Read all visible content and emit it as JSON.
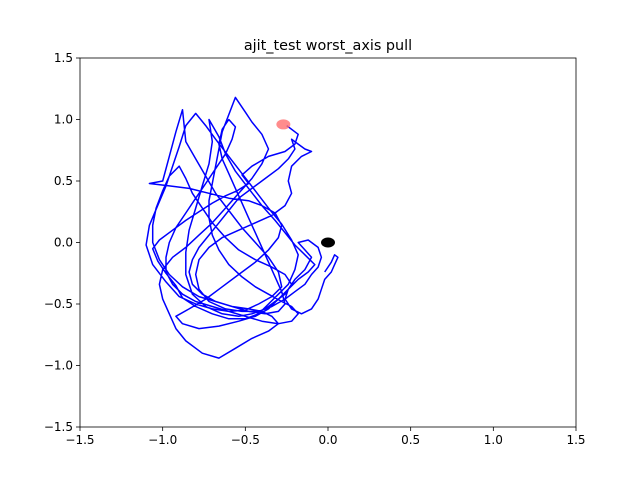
{
  "chart_data": {
    "type": "line",
    "title": "ajit_test worst_axis pull",
    "xlabel": "",
    "ylabel": "",
    "xlim": [
      -1.5,
      1.5
    ],
    "ylim": [
      -1.5,
      1.5
    ],
    "xticks": [
      -1.5,
      -1.0,
      -0.5,
      0.0,
      0.5,
      1.0,
      1.5
    ],
    "yticks": [
      -1.5,
      -1.0,
      -0.5,
      0.0,
      0.5,
      1.0,
      1.5
    ],
    "xtick_labels": [
      "−1.5",
      "−1.0",
      "−0.5",
      "0.0",
      "0.5",
      "1.0",
      "1.5"
    ],
    "ytick_labels": [
      "−1.5",
      "−1.0",
      "−0.5",
      "0.0",
      "0.5",
      "1.0",
      "1.5"
    ],
    "grid": false,
    "series": [
      {
        "color": "#0000ff",
        "points": [
          [
            -0.25,
            0.95
          ],
          [
            -0.18,
            0.88
          ],
          [
            -0.2,
            0.8
          ],
          [
            -0.26,
            0.74
          ],
          [
            -0.36,
            0.7
          ],
          [
            -0.46,
            0.62
          ],
          [
            -0.52,
            0.55
          ],
          [
            -0.48,
            0.48
          ],
          [
            -0.55,
            0.42
          ],
          [
            -0.62,
            0.38
          ],
          [
            -0.7,
            0.32
          ],
          [
            -0.78,
            0.25
          ],
          [
            -0.86,
            0.18
          ],
          [
            -0.94,
            0.1
          ],
          [
            -1.02,
            0.02
          ],
          [
            -1.06,
            -0.05
          ],
          [
            -1.03,
            -0.15
          ],
          [
            -0.98,
            -0.25
          ],
          [
            -0.92,
            -0.35
          ],
          [
            -0.88,
            -0.45
          ],
          [
            -0.8,
            -0.52
          ],
          [
            -0.7,
            -0.58
          ],
          [
            -0.6,
            -0.62
          ],
          [
            -0.5,
            -0.62
          ],
          [
            -0.42,
            -0.58
          ],
          [
            -0.36,
            -0.5
          ],
          [
            -0.3,
            -0.42
          ],
          [
            -0.24,
            -0.34
          ],
          [
            -0.2,
            -0.22
          ],
          [
            -0.18,
            -0.1
          ],
          [
            -0.22,
            0.02
          ],
          [
            -0.28,
            0.15
          ],
          [
            -0.36,
            0.28
          ],
          [
            -0.44,
            0.42
          ],
          [
            -0.52,
            0.56
          ],
          [
            -0.6,
            0.7
          ],
          [
            -0.68,
            0.84
          ],
          [
            -0.74,
            0.95
          ],
          [
            -0.8,
            1.05
          ],
          [
            -0.86,
            0.95
          ],
          [
            -0.9,
            0.78
          ],
          [
            -0.94,
            0.62
          ],
          [
            -0.98,
            0.46
          ],
          [
            -1.03,
            0.3
          ],
          [
            -1.08,
            0.14
          ],
          [
            -1.1,
            -0.02
          ],
          [
            -1.06,
            -0.18
          ],
          [
            -0.98,
            -0.32
          ],
          [
            -0.9,
            -0.44
          ],
          [
            -0.8,
            -0.5
          ],
          [
            -0.7,
            -0.54
          ],
          [
            -0.6,
            -0.56
          ],
          [
            -0.5,
            -0.55
          ],
          [
            -0.42,
            -0.5
          ],
          [
            -0.34,
            -0.44
          ],
          [
            -0.28,
            -0.36
          ],
          [
            -0.3,
            -0.24
          ],
          [
            -0.36,
            -0.12
          ],
          [
            -0.44,
            0.0
          ],
          [
            -0.52,
            0.12
          ],
          [
            -0.6,
            0.26
          ],
          [
            -0.68,
            0.4
          ],
          [
            -0.74,
            0.54
          ],
          [
            -0.8,
            0.68
          ],
          [
            -0.86,
            0.82
          ],
          [
            -0.88,
            1.08
          ],
          [
            -0.92,
            0.9
          ],
          [
            -0.96,
            0.7
          ],
          [
            -1.0,
            0.5
          ],
          [
            -1.08,
            0.48
          ],
          [
            -0.96,
            0.46
          ],
          [
            -0.84,
            0.44
          ],
          [
            -0.72,
            0.4
          ],
          [
            -0.6,
            0.36
          ],
          [
            -0.48,
            0.34
          ],
          [
            -0.4,
            0.3
          ],
          [
            -0.32,
            0.24
          ],
          [
            -0.28,
            0.14
          ],
          [
            -0.3,
            0.04
          ],
          [
            -0.36,
            -0.06
          ],
          [
            -0.44,
            -0.16
          ],
          [
            -0.54,
            -0.26
          ],
          [
            -0.64,
            -0.36
          ],
          [
            -0.74,
            -0.46
          ],
          [
            -0.84,
            -0.54
          ],
          [
            -0.92,
            -0.6
          ],
          [
            -0.88,
            -0.66
          ],
          [
            -0.78,
            -0.7
          ],
          [
            -0.66,
            -0.68
          ],
          [
            -0.54,
            -0.64
          ],
          [
            -0.44,
            -0.6
          ],
          [
            -0.36,
            -0.54
          ],
          [
            -0.3,
            -0.46
          ],
          [
            -0.24,
            -0.38
          ],
          [
            -0.18,
            -0.3
          ],
          [
            -0.12,
            -0.24
          ],
          [
            -0.08,
            -0.18
          ],
          [
            -0.14,
            -0.1
          ],
          [
            -0.2,
            -0.02
          ],
          [
            -0.26,
            0.08
          ],
          [
            -0.32,
            0.18
          ],
          [
            -0.4,
            0.3
          ],
          [
            -0.48,
            0.44
          ],
          [
            -0.56,
            0.58
          ],
          [
            -0.62,
            0.72
          ],
          [
            -0.66,
            0.86
          ],
          [
            -0.72,
            1.0
          ],
          [
            -0.7,
            0.82
          ],
          [
            -0.72,
            0.64
          ],
          [
            -0.76,
            0.46
          ],
          [
            -0.8,
            0.28
          ],
          [
            -0.84,
            0.1
          ],
          [
            -0.86,
            -0.08
          ],
          [
            -0.86,
            -0.26
          ],
          [
            -0.82,
            -0.42
          ],
          [
            -0.74,
            -0.52
          ],
          [
            -0.64,
            -0.58
          ],
          [
            -0.54,
            -0.6
          ],
          [
            -0.46,
            -0.58
          ],
          [
            -0.38,
            -0.54
          ],
          [
            -0.32,
            -0.48
          ],
          [
            -0.26,
            -0.42
          ],
          [
            -0.22,
            -0.34
          ],
          [
            -0.26,
            -0.26
          ],
          [
            -0.34,
            -0.2
          ],
          [
            -0.44,
            -0.14
          ],
          [
            -0.54,
            -0.06
          ],
          [
            -0.62,
            0.04
          ],
          [
            -0.7,
            0.16
          ],
          [
            -0.76,
            0.28
          ],
          [
            -0.82,
            0.4
          ],
          [
            -0.86,
            0.52
          ],
          [
            -0.9,
            0.62
          ],
          [
            -0.96,
            0.54
          ],
          [
            -1.0,
            0.42
          ],
          [
            -1.04,
            0.28
          ],
          [
            -1.06,
            0.14
          ],
          [
            -1.06,
            0.0
          ],
          [
            -1.02,
            -0.14
          ],
          [
            -0.96,
            -0.26
          ],
          [
            -0.88,
            -0.36
          ],
          [
            -0.78,
            -0.44
          ],
          [
            -0.68,
            -0.48
          ],
          [
            -0.58,
            -0.52
          ],
          [
            -0.48,
            -0.54
          ],
          [
            -0.4,
            -0.56
          ],
          [
            -0.34,
            -0.6
          ],
          [
            -0.3,
            -0.66
          ],
          [
            -0.36,
            -0.72
          ],
          [
            -0.46,
            -0.78
          ],
          [
            -0.56,
            -0.86
          ],
          [
            -0.66,
            -0.94
          ],
          [
            -0.76,
            -0.9
          ],
          [
            -0.86,
            -0.8
          ],
          [
            -0.92,
            -0.7
          ],
          [
            -0.96,
            -0.58
          ],
          [
            -1.0,
            -0.46
          ],
          [
            -1.02,
            -0.34
          ],
          [
            -1.0,
            -0.22
          ],
          [
            -0.94,
            -0.12
          ],
          [
            -0.86,
            -0.04
          ],
          [
            -0.78,
            0.06
          ],
          [
            -0.7,
            0.16
          ],
          [
            -0.62,
            0.28
          ],
          [
            -0.54,
            0.4
          ],
          [
            -0.46,
            0.52
          ],
          [
            -0.4,
            0.64
          ],
          [
            -0.36,
            0.76
          ],
          [
            -0.4,
            0.88
          ],
          [
            -0.46,
            0.98
          ],
          [
            -0.5,
            1.06
          ],
          [
            -0.56,
            1.18
          ],
          [
            -0.6,
            1.04
          ],
          [
            -0.64,
            0.9
          ],
          [
            -0.66,
            0.76
          ],
          [
            -0.68,
            0.62
          ],
          [
            -0.7,
            0.48
          ],
          [
            -0.72,
            0.34
          ],
          [
            -0.72,
            0.2
          ],
          [
            -0.7,
            0.06
          ],
          [
            -0.66,
            -0.06
          ],
          [
            -0.6,
            -0.18
          ],
          [
            -0.52,
            -0.28
          ],
          [
            -0.44,
            -0.36
          ],
          [
            -0.36,
            -0.42
          ],
          [
            -0.28,
            -0.48
          ],
          [
            -0.22,
            -0.52
          ],
          [
            -0.18,
            -0.58
          ],
          [
            -0.22,
            -0.64
          ],
          [
            -0.3,
            -0.66
          ],
          [
            -0.4,
            -0.64
          ],
          [
            -0.5,
            -0.6
          ],
          [
            -0.6,
            -0.56
          ],
          [
            -0.7,
            -0.52
          ],
          [
            -0.8,
            -0.48
          ],
          [
            -0.88,
            -0.42
          ],
          [
            -0.94,
            -0.34
          ],
          [
            -0.98,
            -0.24
          ],
          [
            -0.98,
            -0.12
          ],
          [
            -0.96,
            0.0
          ],
          [
            -0.92,
            0.12
          ],
          [
            -0.86,
            0.24
          ],
          [
            -0.8,
            0.36
          ],
          [
            -0.74,
            0.48
          ],
          [
            -0.68,
            0.6
          ],
          [
            -0.62,
            0.72
          ],
          [
            -0.58,
            0.84
          ],
          [
            -0.56,
            0.94
          ],
          [
            -0.6,
            1.0
          ],
          [
            -0.64,
            0.92
          ],
          [
            -0.66,
            0.8
          ],
          [
            -0.64,
            0.68
          ],
          [
            -0.6,
            0.56
          ],
          [
            -0.56,
            0.44
          ],
          [
            -0.52,
            0.32
          ],
          [
            -0.48,
            0.2
          ],
          [
            -0.44,
            0.08
          ],
          [
            -0.4,
            -0.04
          ],
          [
            -0.36,
            -0.16
          ],
          [
            -0.32,
            -0.28
          ],
          [
            -0.28,
            -0.4
          ],
          [
            -0.26,
            -0.5
          ],
          [
            -0.3,
            -0.56
          ],
          [
            -0.38,
            -0.58
          ],
          [
            -0.48,
            -0.56
          ],
          [
            -0.58,
            -0.52
          ],
          [
            -0.68,
            -0.48
          ],
          [
            -0.76,
            -0.42
          ],
          [
            -0.82,
            -0.34
          ],
          [
            -0.84,
            -0.24
          ],
          [
            -0.82,
            -0.14
          ],
          [
            -0.78,
            -0.04
          ],
          [
            -0.72,
            0.06
          ],
          [
            -0.66,
            0.16
          ],
          [
            -0.6,
            0.26
          ],
          [
            -0.54,
            0.36
          ],
          [
            -0.46,
            0.44
          ],
          [
            -0.38,
            0.52
          ],
          [
            -0.3,
            0.6
          ],
          [
            -0.24,
            0.68
          ],
          [
            -0.2,
            0.76
          ],
          [
            -0.22,
            0.84
          ],
          [
            -0.18,
            0.8
          ],
          [
            -0.14,
            0.76
          ],
          [
            -0.1,
            0.74
          ],
          [
            -0.16,
            0.7
          ],
          [
            -0.22,
            0.62
          ],
          [
            -0.24,
            0.5
          ],
          [
            -0.22,
            0.4
          ],
          [
            -0.26,
            0.3
          ],
          [
            -0.34,
            0.22
          ],
          [
            -0.44,
            0.16
          ],
          [
            -0.54,
            0.1
          ],
          [
            -0.64,
            0.04
          ],
          [
            -0.72,
            -0.04
          ],
          [
            -0.78,
            -0.14
          ],
          [
            -0.8,
            -0.26
          ],
          [
            -0.78,
            -0.38
          ],
          [
            -0.72,
            -0.48
          ],
          [
            -0.62,
            -0.54
          ],
          [
            -0.52,
            -0.56
          ],
          [
            -0.42,
            -0.56
          ],
          [
            -0.34,
            -0.52
          ],
          [
            -0.26,
            -0.46
          ],
          [
            -0.2,
            -0.4
          ],
          [
            -0.14,
            -0.34
          ],
          [
            -0.1,
            -0.26
          ],
          [
            -0.06,
            -0.2
          ],
          [
            -0.04,
            -0.12
          ],
          [
            -0.06,
            -0.04
          ],
          [
            -0.12,
            0.02
          ],
          [
            -0.18,
            0.0
          ],
          [
            -0.14,
            -0.06
          ],
          [
            -0.1,
            -0.12
          ],
          [
            -0.14,
            -0.22
          ],
          [
            -0.2,
            -0.3
          ],
          [
            -0.24,
            -0.38
          ],
          [
            -0.26,
            -0.46
          ],
          [
            -0.22,
            -0.54
          ],
          [
            -0.16,
            -0.58
          ],
          [
            -0.1,
            -0.54
          ],
          [
            -0.06,
            -0.46
          ],
          [
            -0.04,
            -0.38
          ],
          [
            -0.02,
            -0.3
          ],
          [
            0.02,
            -0.24
          ],
          [
            0.04,
            -0.18
          ],
          [
            0.06,
            -0.12
          ],
          [
            0.04,
            -0.1
          ],
          [
            0.02,
            -0.16
          ],
          [
            -0.02,
            -0.24
          ]
        ]
      }
    ],
    "markers": [
      {
        "x": -0.27,
        "y": 0.96,
        "color": "#ff6f6f",
        "shape": "circle"
      },
      {
        "x": 0.0,
        "y": 0.0,
        "color": "#000000",
        "shape": "circle"
      }
    ]
  }
}
